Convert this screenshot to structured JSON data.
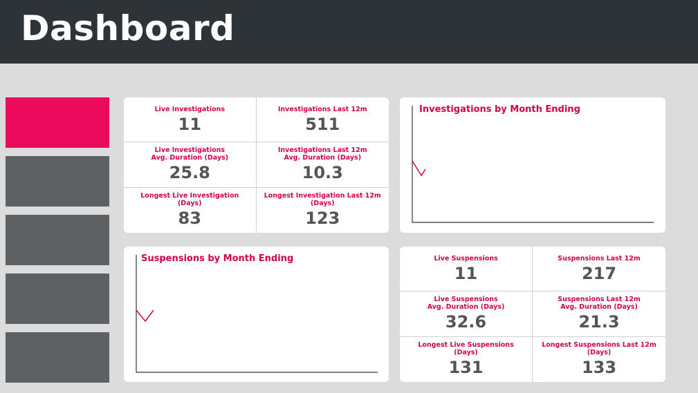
{
  "header": {
    "title": "Dashboard"
  },
  "investigation_metrics": [
    {
      "label": "Live Investigations",
      "value": 11
    },
    {
      "label": "Investigations Last 12m",
      "value": 511
    },
    {
      "label": "Live Investigations\nAvg. Duration (Days)",
      "value": 25.8
    },
    {
      "label": "Investigations Last 12m\nAvg. Duration (Days)",
      "value": 10.3
    },
    {
      "label": "Longest Live Investigation\n(Days)",
      "value": 83
    },
    {
      "label": "Longest Investigation Last 12m\n(Days)",
      "value": 123
    }
  ],
  "investigations_chart": {
    "title": "Investigations by Month Ending"
  },
  "suspensions_chart": {
    "title": "Suspensions by Month Ending"
  },
  "suspension_metrics": [
    {
      "label": "Live Suspensions",
      "value": 11
    },
    {
      "label": "Suspensions Last 12m",
      "value": 217
    },
    {
      "label": "Live Suspensions\nAvg. Duration (Days)",
      "value": 32.6
    },
    {
      "label": "Suspensions Last 12m\nAvg. Duration (Days)",
      "value": 21.3
    },
    {
      "label": "Longest Live Suspensions\n(Days)",
      "value": 131
    },
    {
      "label": "Longest Suspensions Last 12m\n(Days)",
      "value": 133
    }
  ]
}
